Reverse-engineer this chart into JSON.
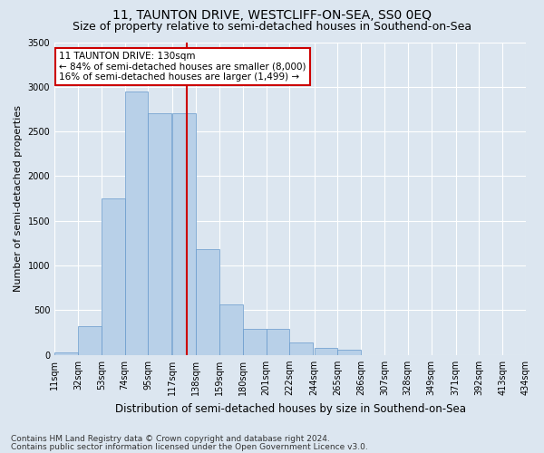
{
  "title": "11, TAUNTON DRIVE, WESTCLIFF-ON-SEA, SS0 0EQ",
  "subtitle": "Size of property relative to semi-detached houses in Southend-on-Sea",
  "xlabel": "Distribution of semi-detached houses by size in Southend-on-Sea",
  "ylabel": "Number of semi-detached properties",
  "footer1": "Contains HM Land Registry data © Crown copyright and database right 2024.",
  "footer2": "Contains public sector information licensed under the Open Government Licence v3.0.",
  "annotation_line1": "11 TAUNTON DRIVE: 130sqm",
  "annotation_line2": "← 84% of semi-detached houses are smaller (8,000)",
  "annotation_line3": "16% of semi-detached houses are larger (1,499) →",
  "property_size_sqm": 130,
  "bin_labels": [
    "11sqm",
    "32sqm",
    "53sqm",
    "74sqm",
    "95sqm",
    "117sqm",
    "138sqm",
    "159sqm",
    "180sqm",
    "201sqm",
    "222sqm",
    "244sqm",
    "265sqm",
    "286sqm",
    "307sqm",
    "328sqm",
    "349sqm",
    "371sqm",
    "392sqm",
    "413sqm",
    "434sqm"
  ],
  "bin_edges": [
    11,
    32,
    53,
    74,
    95,
    117,
    138,
    159,
    180,
    201,
    222,
    244,
    265,
    286,
    307,
    328,
    349,
    371,
    392,
    413,
    434
  ],
  "bar_heights": [
    30,
    320,
    1750,
    2950,
    2700,
    2700,
    1180,
    565,
    290,
    290,
    140,
    80,
    58,
    0,
    0,
    0,
    0,
    0,
    0,
    0
  ],
  "bar_color": "#b8d0e8",
  "bar_edge_color": "#6699cc",
  "vline_color": "#cc0000",
  "vline_x": 130,
  "box_color": "#cc0000",
  "ylim": [
    0,
    3500
  ],
  "yticks": [
    0,
    500,
    1000,
    1500,
    2000,
    2500,
    3000,
    3500
  ],
  "background_color": "#dce6f0",
  "axes_bg_color": "#dce6f0",
  "grid_color": "#ffffff",
  "title_fontsize": 10,
  "subtitle_fontsize": 9,
  "xlabel_fontsize": 8.5,
  "ylabel_fontsize": 8,
  "tick_fontsize": 7,
  "annotation_fontsize": 7.5,
  "footer_fontsize": 6.5
}
